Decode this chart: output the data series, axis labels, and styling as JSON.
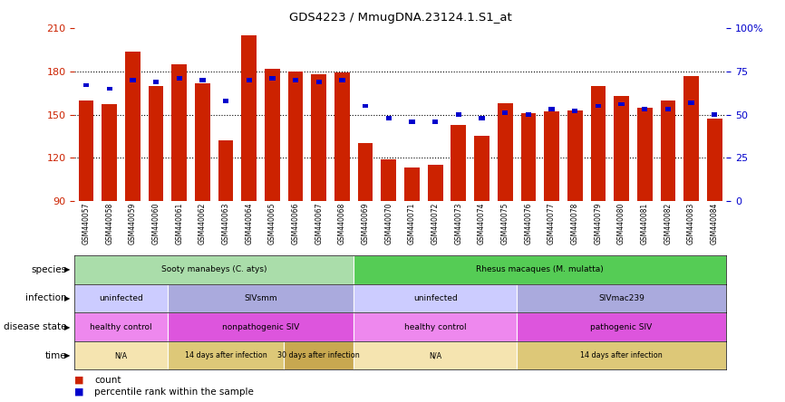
{
  "title": "GDS4223 / MmugDNA.23124.1.S1_at",
  "samples": [
    "GSM440057",
    "GSM440058",
    "GSM440059",
    "GSM440060",
    "GSM440061",
    "GSM440062",
    "GSM440063",
    "GSM440064",
    "GSM440065",
    "GSM440066",
    "GSM440067",
    "GSM440068",
    "GSM440069",
    "GSM440070",
    "GSM440071",
    "GSM440072",
    "GSM440073",
    "GSM440074",
    "GSM440075",
    "GSM440076",
    "GSM440077",
    "GSM440078",
    "GSM440079",
    "GSM440080",
    "GSM440081",
    "GSM440082",
    "GSM440083",
    "GSM440084"
  ],
  "counts": [
    160,
    157,
    194,
    170,
    185,
    172,
    132,
    205,
    182,
    180,
    178,
    179,
    130,
    119,
    113,
    115,
    143,
    135,
    158,
    151,
    152,
    153,
    170,
    163,
    155,
    160,
    177,
    147
  ],
  "percentile_ranks": [
    67,
    65,
    70,
    69,
    71,
    70,
    58,
    70,
    71,
    70,
    69,
    70,
    55,
    48,
    46,
    46,
    50,
    48,
    51,
    50,
    53,
    52,
    55,
    56,
    53,
    53,
    57,
    50
  ],
  "y_min": 90,
  "y_max": 210,
  "y_ticks": [
    90,
    120,
    150,
    180,
    210
  ],
  "y_right_ticks": [
    0,
    25,
    50,
    75,
    100
  ],
  "bar_color": "#cc2200",
  "dot_color": "#0000cc",
  "bg_color": "#ffffff",
  "annotations": {
    "species": {
      "label": "species",
      "blocks": [
        {
          "text": "Sooty manabeys (C. atys)",
          "start": 0,
          "end": 12,
          "color": "#aaddaa"
        },
        {
          "text": "Rhesus macaques (M. mulatta)",
          "start": 12,
          "end": 28,
          "color": "#55cc55"
        }
      ]
    },
    "infection": {
      "label": "infection",
      "blocks": [
        {
          "text": "uninfected",
          "start": 0,
          "end": 4,
          "color": "#ccccff"
        },
        {
          "text": "SIVsmm",
          "start": 4,
          "end": 12,
          "color": "#aaaadd"
        },
        {
          "text": "uninfected",
          "start": 12,
          "end": 19,
          "color": "#ccccff"
        },
        {
          "text": "SIVmac239",
          "start": 19,
          "end": 28,
          "color": "#aaaadd"
        }
      ]
    },
    "disease_state": {
      "label": "disease state",
      "blocks": [
        {
          "text": "healthy control",
          "start": 0,
          "end": 4,
          "color": "#ee88ee"
        },
        {
          "text": "nonpathogenic SIV",
          "start": 4,
          "end": 12,
          "color": "#dd55dd"
        },
        {
          "text": "healthy control",
          "start": 12,
          "end": 19,
          "color": "#ee88ee"
        },
        {
          "text": "pathogenic SIV",
          "start": 19,
          "end": 28,
          "color": "#dd55dd"
        }
      ]
    },
    "time": {
      "label": "time",
      "blocks": [
        {
          "text": "N/A",
          "start": 0,
          "end": 4,
          "color": "#f5e4b0"
        },
        {
          "text": "14 days after infection",
          "start": 4,
          "end": 9,
          "color": "#ddc878"
        },
        {
          "text": "30 days after infection",
          "start": 9,
          "end": 12,
          "color": "#c8a850"
        },
        {
          "text": "N/A",
          "start": 12,
          "end": 19,
          "color": "#f5e4b0"
        },
        {
          "text": "14 days after infection",
          "start": 19,
          "end": 28,
          "color": "#ddc878"
        }
      ]
    }
  }
}
